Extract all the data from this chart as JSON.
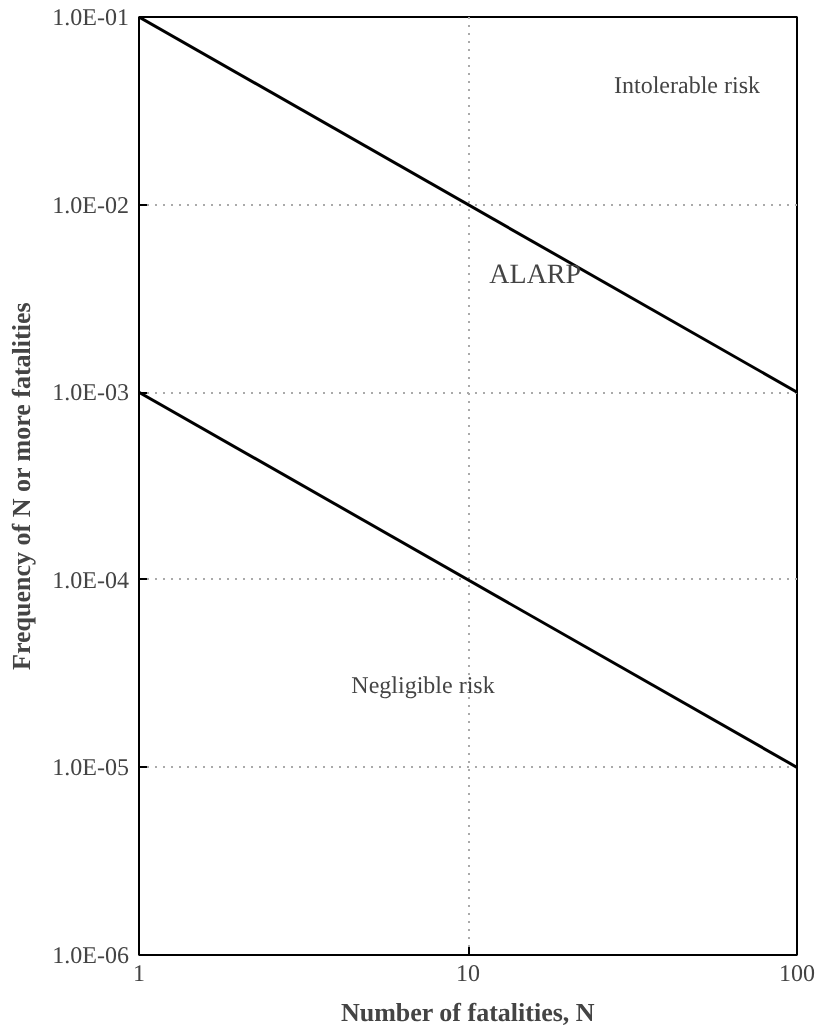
{
  "chart_data": {
    "type": "line",
    "xlabel": "Number of fatalities, N",
    "ylabel": "Frequency of N or more fatalities",
    "log": "xy",
    "xlim": [
      1,
      100
    ],
    "xticks": [
      1,
      10,
      100
    ],
    "ylim": [
      1e-06,
      0.1
    ],
    "yticks": [
      {
        "value": 1e-06,
        "label": "1.0E-06"
      },
      {
        "value": 1e-05,
        "label": "1.0E-05"
      },
      {
        "value": 0.0001,
        "label": "1.0E-04"
      },
      {
        "value": 0.001,
        "label": "1.0E-03"
      },
      {
        "value": 0.01,
        "label": "1.0E-02"
      },
      {
        "value": 0.1,
        "label": "1.0E-01"
      }
    ],
    "x": [
      1,
      100
    ],
    "series": [
      {
        "color": "#000000",
        "values": [
          0.1,
          0.001
        ]
      },
      {
        "color": "#000000",
        "values": [
          0.001,
          1e-05
        ]
      }
    ],
    "annotations": [
      "Intolerable risk",
      "ALARP",
      "Negligible risk"
    ],
    "grid": true,
    "marker": "none",
    "line_style": "solid"
  }
}
